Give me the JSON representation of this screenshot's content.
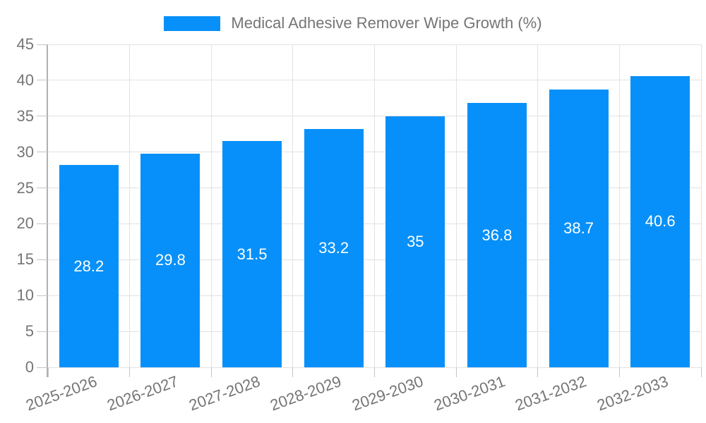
{
  "legend": {
    "label": "Medical Adhesive Remover Wipe Growth (%)"
  },
  "chart_data": {
    "type": "bar",
    "title": "Medical Adhesive Remover Wipe Growth (%)",
    "categories": [
      "2025-2026",
      "2026-2027",
      "2027-2028",
      "2028-2029",
      "2029-2030",
      "2030-2031",
      "2031-2032",
      "2032-2033"
    ],
    "values": [
      28.2,
      29.8,
      31.5,
      33.2,
      35,
      36.8,
      38.7,
      40.6
    ],
    "value_labels": [
      "28.2",
      "29.8",
      "31.5",
      "33.2",
      "35",
      "36.8",
      "38.7",
      "40.6"
    ],
    "xlabel": "",
    "ylabel": "",
    "ylim": [
      0,
      45
    ],
    "ytick_step": 5,
    "yticks": [
      0,
      5,
      10,
      15,
      20,
      25,
      30,
      35,
      40,
      45
    ],
    "grid": true,
    "legend_position": "top",
    "bar_color": "#0790f9",
    "value_label_color": "#ffffff",
    "axis_text_color": "#757575",
    "gridline_color": "#e2e2e2",
    "axis_line_color": "#b0b0b0"
  }
}
